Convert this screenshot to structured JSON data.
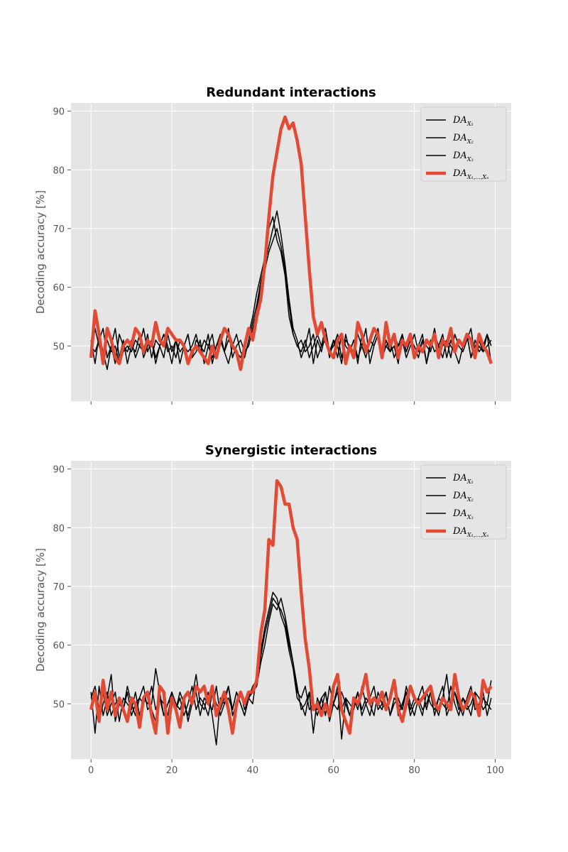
{
  "chart_data": [
    {
      "type": "line",
      "title": "Redundant interactions",
      "ylabel": "Decoding accuracy [%]",
      "xlabel": "",
      "xlim": [
        -4.95,
        103.95
      ],
      "ylim": [
        40.6,
        91.4
      ],
      "xticks": [
        0,
        20,
        40,
        60,
        80,
        100
      ],
      "yticks": [
        50,
        60,
        70,
        80,
        90
      ],
      "show_xtick_labels": false,
      "grid": true,
      "legend": "top-right",
      "x_start": 0,
      "x_step": 1,
      "series": [
        {
          "name": "DA_X1",
          "legend_main": "DA",
          "legend_sub": "X₁",
          "color": "#000000",
          "width": 1.5,
          "values": [
            48,
            53,
            50,
            48,
            51,
            49,
            50,
            47,
            49,
            50,
            49,
            51,
            50,
            49,
            52,
            48,
            51,
            50,
            52,
            49,
            50,
            48,
            51,
            50,
            49,
            50,
            52,
            49,
            51,
            50,
            48,
            50,
            52,
            49,
            51,
            50,
            49,
            48,
            50,
            52,
            55,
            59,
            62,
            65,
            70,
            72,
            68,
            66,
            62,
            55,
            52,
            50,
            49,
            51,
            48,
            50,
            52,
            50,
            51,
            49,
            50,
            52,
            48,
            51,
            50,
            49,
            52,
            50,
            48,
            51,
            50,
            52,
            49,
            50,
            51,
            48,
            50,
            52,
            49,
            51,
            50,
            48,
            51,
            50,
            49,
            52,
            50,
            48,
            51,
            50,
            49,
            51,
            50,
            52,
            48,
            50,
            51,
            49,
            50,
            51
          ]
        },
        {
          "name": "DA_X2",
          "legend_main": "DA",
          "legend_sub": "X₂",
          "color": "#000000",
          "width": 1.5,
          "values": [
            51,
            47,
            52,
            49,
            46,
            50,
            53,
            48,
            51,
            47,
            50,
            49,
            52,
            48,
            50,
            51,
            47,
            50,
            48,
            52,
            49,
            51,
            47,
            50,
            52,
            48,
            49,
            51,
            47,
            50,
            52,
            48,
            51,
            49,
            47,
            50,
            52,
            49,
            48,
            51,
            54,
            57,
            61,
            64,
            67,
            70,
            73,
            69,
            64,
            58,
            53,
            51,
            48,
            50,
            53,
            47,
            51,
            49,
            52,
            48,
            51,
            50,
            47,
            52,
            49,
            51,
            48,
            50,
            53,
            47,
            50,
            52,
            48,
            51,
            49,
            50,
            47,
            52,
            49,
            51,
            48,
            50,
            52,
            47,
            51,
            49,
            50,
            52,
            48,
            51,
            49,
            47,
            50,
            52,
            48,
            51,
            49,
            50,
            52,
            47
          ]
        },
        {
          "name": "DA_X3",
          "legend_main": "DA",
          "legend_sub": "X₃",
          "color": "#000000",
          "width": 1.5,
          "values": [
            50,
            49,
            51,
            53,
            48,
            50,
            47,
            52,
            50,
            49,
            51,
            48,
            50,
            53,
            49,
            51,
            48,
            50,
            52,
            50,
            47,
            51,
            49,
            50,
            52,
            48,
            51,
            50,
            49,
            52,
            47,
            50,
            51,
            49,
            53,
            48,
            50,
            51,
            49,
            50,
            53,
            56,
            60,
            63,
            66,
            68,
            70,
            67,
            63,
            57,
            52,
            50,
            51,
            49,
            50,
            52,
            48,
            50,
            53,
            49,
            51,
            48,
            52,
            50,
            49,
            51,
            47,
            52,
            50,
            49,
            51,
            53,
            48,
            50,
            49,
            52,
            50,
            51,
            48,
            50,
            52,
            49,
            51,
            47,
            50,
            53,
            49,
            50,
            51,
            48,
            52,
            50,
            49,
            51,
            53,
            48,
            50,
            49,
            52,
            50
          ]
        },
        {
          "name": "DA_X1..XN",
          "legend_main": "DA",
          "legend_sub": "X₁,...,Xₙ",
          "color": "#E24A33",
          "width": 4.5,
          "values": [
            48,
            56,
            52,
            47,
            53,
            51,
            48,
            47,
            50,
            51,
            50,
            53,
            52,
            49,
            51,
            50,
            54,
            51,
            50,
            53,
            52,
            51,
            51,
            50,
            47,
            49,
            50,
            49,
            48,
            47,
            50,
            48,
            51,
            53,
            52,
            50,
            49,
            46,
            50,
            53,
            51,
            55,
            58,
            64,
            72,
            79,
            83,
            87,
            89,
            87,
            88,
            85,
            81,
            72,
            63,
            55,
            52,
            54,
            51,
            49,
            48,
            51,
            52,
            47,
            50,
            48,
            54,
            52,
            49,
            51,
            53,
            52,
            48,
            54,
            50,
            52,
            48,
            51,
            50,
            52,
            48,
            50,
            49,
            51,
            50,
            52,
            48,
            51,
            50,
            53,
            49,
            51,
            50,
            52,
            51,
            48,
            52,
            50,
            49,
            47
          ]
        }
      ]
    },
    {
      "type": "line",
      "title": "Synergistic interactions",
      "ylabel": "Decoding accuracy [%]",
      "xlabel": "",
      "xlim": [
        -4.95,
        103.95
      ],
      "ylim": [
        40.6,
        91.4
      ],
      "xticks": [
        0,
        20,
        40,
        60,
        80,
        100
      ],
      "yticks": [
        50,
        60,
        70,
        80,
        90
      ],
      "show_xtick_labels": true,
      "grid": true,
      "legend": "top-right",
      "x_start": 0,
      "x_step": 1,
      "series": [
        {
          "name": "DA_X1",
          "legend_main": "DA",
          "legend_sub": "X₁",
          "color": "#000000",
          "width": 1.5,
          "values": [
            52,
            45,
            53,
            48,
            51,
            55,
            47,
            50,
            49,
            52,
            48,
            50,
            51,
            53,
            49,
            50,
            56,
            52,
            48,
            50,
            51,
            49,
            52,
            50,
            48,
            51,
            55,
            50,
            49,
            52,
            48,
            43,
            51,
            50,
            53,
            49,
            52,
            50,
            48,
            51,
            53,
            54,
            58,
            62,
            65,
            68,
            67,
            66,
            64,
            60,
            57,
            53,
            49,
            50,
            52,
            45,
            51,
            49,
            52,
            48,
            50,
            53,
            44,
            51,
            50,
            49,
            52,
            48,
            50,
            51,
            53,
            49,
            50,
            52,
            48,
            51,
            50,
            49,
            52,
            48,
            50,
            51,
            53,
            49,
            52,
            50,
            48,
            51,
            55,
            49,
            52,
            50,
            48,
            51,
            53,
            49,
            50,
            52,
            48,
            51
          ]
        },
        {
          "name": "DA_X2",
          "legend_main": "DA",
          "legend_sub": "X₂",
          "color": "#000000",
          "width": 1.5,
          "values": [
            51,
            53,
            49,
            52,
            48,
            50,
            52,
            47,
            51,
            50,
            49,
            52,
            48,
            51,
            50,
            53,
            49,
            51,
            48,
            50,
            52,
            49,
            51,
            48,
            50,
            53,
            49,
            51,
            50,
            48,
            52,
            50,
            49,
            51,
            53,
            48,
            50,
            52,
            49,
            51,
            50,
            55,
            59,
            63,
            66,
            69,
            68,
            65,
            63,
            59,
            56,
            51,
            50,
            48,
            52,
            50,
            49,
            51,
            48,
            53,
            50,
            52,
            49,
            51,
            48,
            50,
            52,
            49,
            51,
            50,
            48,
            52,
            50,
            49,
            51,
            53,
            48,
            50,
            52,
            49,
            51,
            50,
            48,
            52,
            50,
            49,
            51,
            53,
            48,
            50,
            52,
            49,
            51,
            50,
            48,
            52,
            51,
            49,
            50,
            54
          ]
        },
        {
          "name": "DA_X3",
          "legend_main": "DA",
          "legend_sub": "X₃",
          "color": "#000000",
          "width": 1.5,
          "values": [
            49,
            51,
            47,
            50,
            52,
            48,
            50,
            51,
            49,
            53,
            50,
            48,
            51,
            50,
            52,
            49,
            47,
            51,
            50,
            48,
            52,
            50,
            49,
            51,
            47,
            50,
            52,
            48,
            51,
            50,
            49,
            53,
            48,
            50,
            51,
            49,
            52,
            50,
            48,
            51,
            52,
            53,
            57,
            60,
            64,
            67,
            66,
            68,
            65,
            61,
            57,
            52,
            51,
            53,
            49,
            50,
            48,
            51,
            52,
            47,
            50,
            49,
            52,
            50,
            48,
            51,
            49,
            53,
            50,
            48,
            51,
            50,
            49,
            52,
            48,
            50,
            51,
            49,
            53,
            50,
            48,
            51,
            49,
            50,
            52,
            48,
            51,
            50,
            49,
            53,
            50,
            48,
            51,
            49,
            50,
            52,
            48,
            51,
            50,
            49
          ]
        },
        {
          "name": "DA_X1..XN",
          "legend_main": "DA",
          "legend_sub": "X₁,...,Xₙ",
          "color": "#E24A33",
          "width": 4.5,
          "values": [
            49,
            52,
            47,
            54,
            49,
            52,
            48,
            51,
            49,
            47,
            51,
            50,
            46,
            51,
            52,
            48,
            45,
            53,
            52,
            45,
            51,
            49,
            46,
            51,
            52,
            50,
            53,
            52,
            53,
            50,
            53,
            48,
            50,
            52,
            49,
            45,
            50,
            52,
            50,
            52,
            52,
            54,
            62,
            66,
            78,
            77,
            88,
            87,
            84,
            84,
            80,
            78,
            69,
            61,
            56,
            49,
            50,
            48,
            50,
            48,
            53,
            55,
            49,
            47,
            45,
            51,
            50,
            52,
            55,
            50,
            51,
            50,
            52,
            49,
            51,
            54,
            49,
            47,
            50,
            53,
            51,
            50,
            51,
            52,
            53,
            50,
            49,
            51,
            50,
            49,
            55,
            51,
            49,
            50,
            52,
            51,
            48,
            54,
            52,
            53
          ]
        }
      ]
    }
  ]
}
